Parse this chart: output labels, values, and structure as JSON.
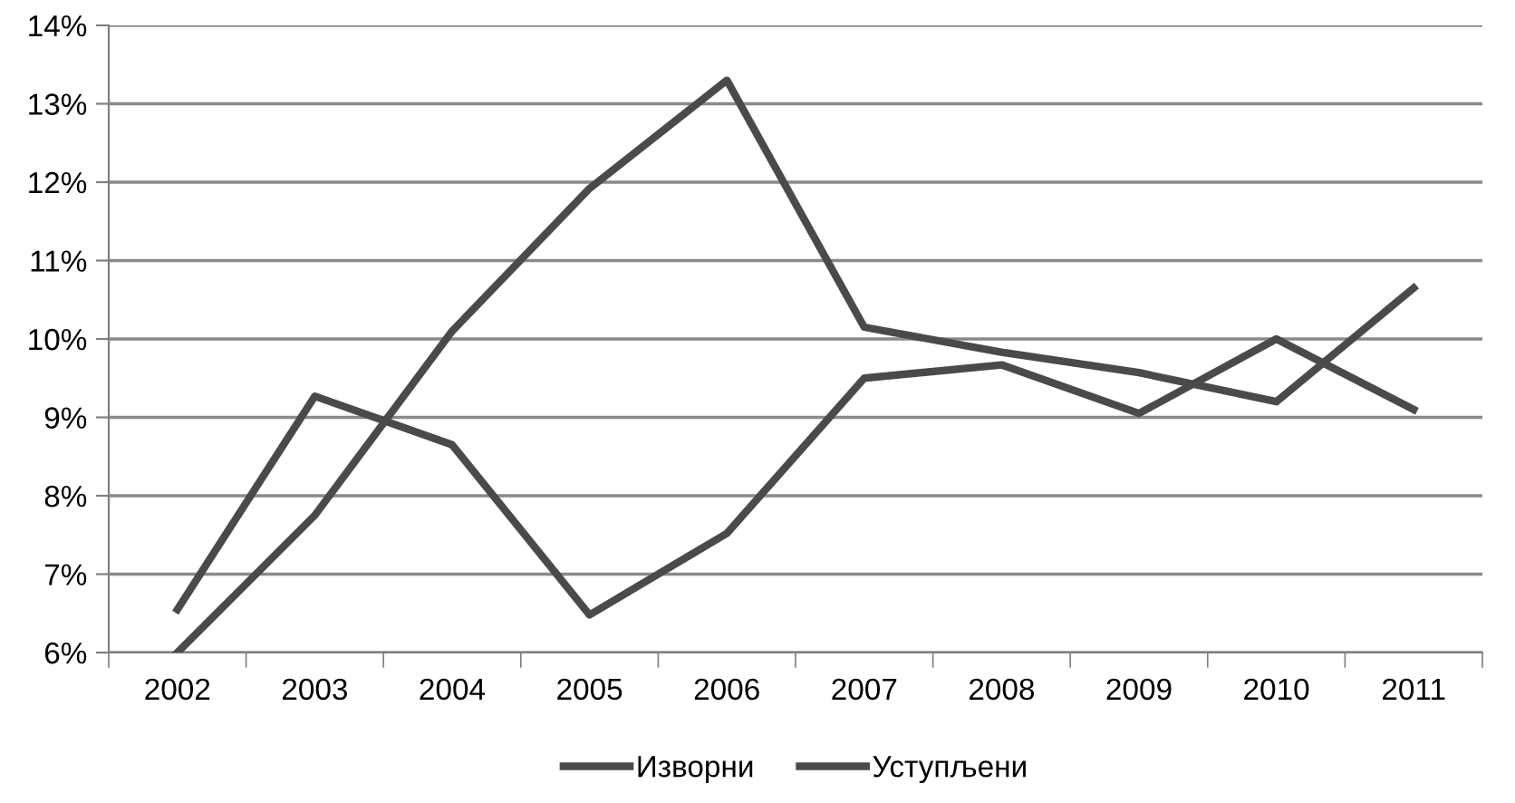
{
  "chart_data": {
    "type": "line",
    "categories": [
      "2002",
      "2003",
      "2004",
      "2005",
      "2006",
      "2007",
      "2008",
      "2009",
      "2010",
      "2011"
    ],
    "series": [
      {
        "name": "Изворни",
        "color": "#4a4a4a",
        "values": [
          6.55,
          9.27,
          8.65,
          6.48,
          7.52,
          9.5,
          9.67,
          9.05,
          10.0,
          9.1
        ]
      },
      {
        "name": "Уступљени",
        "color": "#4a4a4a",
        "values": [
          6.0,
          7.75,
          10.1,
          11.92,
          13.3,
          10.15,
          9.83,
          9.57,
          9.2,
          10.65
        ]
      }
    ],
    "ylim": [
      6,
      14
    ],
    "yticks": [
      {
        "value": 6,
        "label": "6%"
      },
      {
        "value": 7,
        "label": "7%"
      },
      {
        "value": 8,
        "label": "8%"
      },
      {
        "value": 9,
        "label": "9%"
      },
      {
        "value": 10,
        "label": "10%"
      },
      {
        "value": 11,
        "label": "11%"
      },
      {
        "value": 12,
        "label": "12%"
      },
      {
        "value": 13,
        "label": "13%"
      },
      {
        "value": 14,
        "label": "14%"
      }
    ],
    "grid": "y",
    "legend": "bottom",
    "marker": "none",
    "line_style": "solid"
  }
}
